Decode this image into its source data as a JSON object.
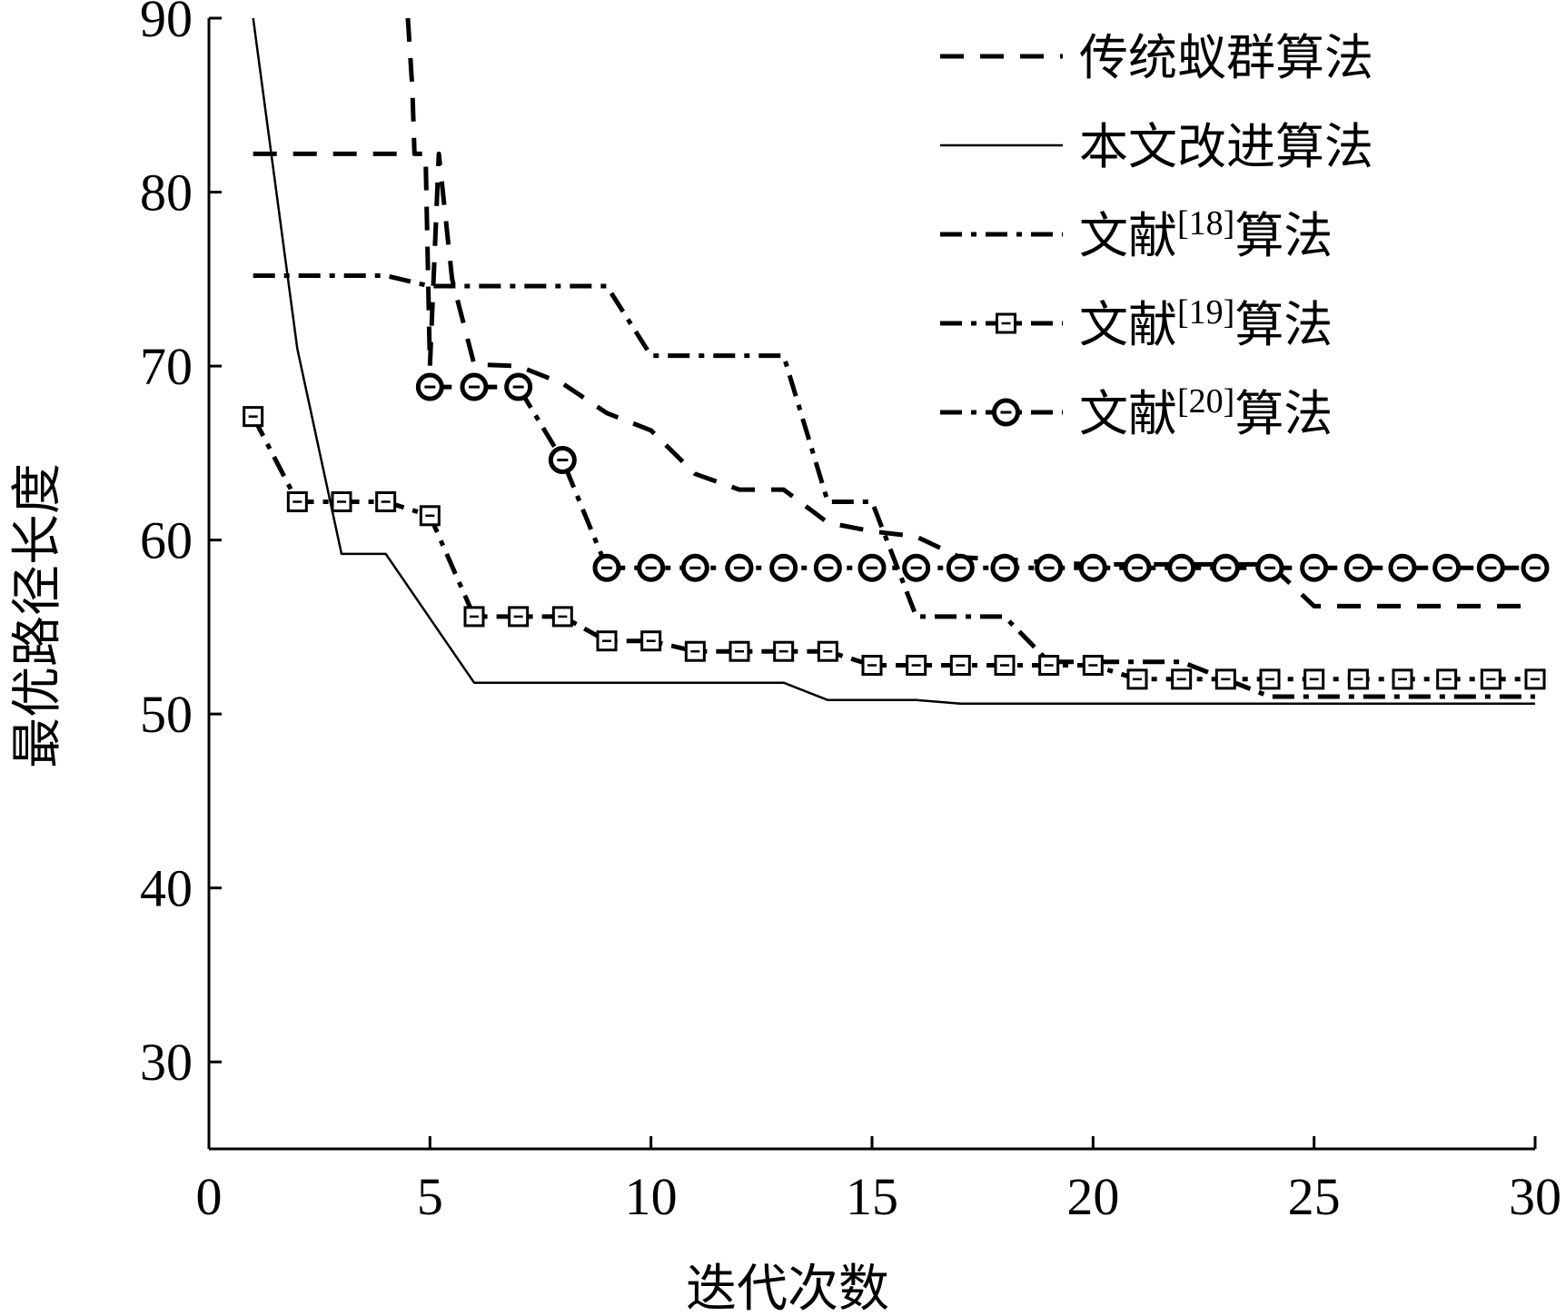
{
  "chart_data": {
    "type": "line",
    "xlabel": "迭代次数",
    "ylabel": "最优路径长度",
    "xlim": [
      0,
      30
    ],
    "ylim": [
      25,
      90
    ],
    "xticks": [
      0,
      5,
      10,
      15,
      20,
      25,
      30
    ],
    "yticks": [
      30,
      40,
      50,
      60,
      70,
      80,
      90
    ],
    "grid": false,
    "legend_position": "top-right",
    "series": [
      {
        "name": "传统蚁群算法",
        "name_prefix": "传统蚁群算法",
        "name_ref": "",
        "name_suffix": "",
        "style": "dashed",
        "marker": "none",
        "points": [
          [
            4.5,
            90
          ],
          [
            4.6,
            86
          ],
          [
            4.65,
            82.2
          ],
          [
            4.9,
            82.2
          ],
          [
            5.0,
            70
          ],
          [
            5.2,
            82.2
          ],
          [
            5.5,
            75
          ],
          [
            6,
            70.1
          ],
          [
            7,
            70
          ],
          [
            8,
            69
          ],
          [
            9,
            67.3
          ],
          [
            10,
            66.3
          ],
          [
            11,
            63.8
          ],
          [
            12,
            62.9
          ],
          [
            13,
            62.9
          ],
          [
            14,
            61
          ],
          [
            15,
            60.5
          ],
          [
            16,
            60.2
          ],
          [
            17,
            59
          ],
          [
            18,
            58.9
          ],
          [
            19,
            58.7
          ],
          [
            20,
            58.6
          ],
          [
            21,
            58.6
          ],
          [
            22,
            58.6
          ],
          [
            23,
            58.6
          ],
          [
            24,
            58.6
          ],
          [
            25,
            56.2
          ],
          [
            30,
            56.2
          ]
        ],
        "extra_segments": [
          [
            [
              1,
              82.2
            ],
            [
              4.6,
              82.2
            ]
          ]
        ]
      },
      {
        "name": "本文改进算法",
        "name_prefix": "本文改进算法",
        "name_ref": "",
        "name_suffix": "",
        "style": "solid",
        "marker": "none",
        "points": [
          [
            1,
            90
          ],
          [
            2,
            71
          ],
          [
            3,
            59.2
          ],
          [
            4,
            59.2
          ],
          [
            5,
            55.5
          ],
          [
            6,
            51.8
          ],
          [
            7,
            51.8
          ],
          [
            8,
            51.8
          ],
          [
            9,
            51.8
          ],
          [
            10,
            51.8
          ],
          [
            11,
            51.8
          ],
          [
            12,
            51.8
          ],
          [
            13,
            51.8
          ],
          [
            14,
            50.8
          ],
          [
            15,
            50.8
          ],
          [
            16,
            50.8
          ],
          [
            17,
            50.6
          ],
          [
            18,
            50.6
          ],
          [
            19,
            50.6
          ],
          [
            20,
            50.6
          ],
          [
            21,
            50.6
          ],
          [
            22,
            50.6
          ],
          [
            23,
            50.6
          ],
          [
            24,
            50.6
          ],
          [
            25,
            50.6
          ],
          [
            30,
            50.6
          ]
        ]
      },
      {
        "name": "文献[18]算法",
        "name_prefix": "文献",
        "name_ref": "[18]",
        "name_suffix": "算法",
        "style": "dashdot",
        "marker": "none",
        "points": [
          [
            1,
            75.2
          ],
          [
            4,
            75.2
          ],
          [
            5,
            74.6
          ],
          [
            9,
            74.6
          ],
          [
            10,
            70.6
          ],
          [
            13,
            70.6
          ],
          [
            14,
            62.2
          ],
          [
            15,
            62.2
          ],
          [
            16,
            55.6
          ],
          [
            18,
            55.6
          ],
          [
            19,
            53
          ],
          [
            22,
            53
          ],
          [
            23,
            52
          ],
          [
            24,
            51
          ],
          [
            30,
            51
          ]
        ]
      },
      {
        "name": "文献[19]算法",
        "name_prefix": "文献",
        "name_ref": "[19]",
        "name_suffix": "算法",
        "style": "dashdot",
        "marker": "square",
        "points": [
          [
            1,
            67.1
          ],
          [
            2,
            62.2
          ],
          [
            3,
            62.2
          ],
          [
            4,
            62.2
          ],
          [
            5,
            61.4
          ],
          [
            6,
            55.6
          ],
          [
            7,
            55.6
          ],
          [
            8,
            55.6
          ],
          [
            9,
            54.2
          ],
          [
            10,
            54.2
          ],
          [
            11,
            53.6
          ],
          [
            12,
            53.6
          ],
          [
            13,
            53.6
          ],
          [
            14,
            53.6
          ],
          [
            15,
            52.8
          ],
          [
            16,
            52.8
          ],
          [
            17,
            52.8
          ],
          [
            18,
            52.8
          ],
          [
            19,
            52.8
          ],
          [
            20,
            52.8
          ],
          [
            21,
            52
          ],
          [
            22,
            52
          ],
          [
            23,
            52
          ],
          [
            24,
            52
          ],
          [
            25,
            52
          ],
          [
            26,
            52
          ],
          [
            27,
            52
          ],
          [
            28,
            52
          ],
          [
            29,
            52
          ],
          [
            30,
            52
          ]
        ]
      },
      {
        "name": "文献[20]算法",
        "name_prefix": "文献",
        "name_ref": "[20]",
        "name_suffix": "算法",
        "style": "dashdot",
        "marker": "circle",
        "points": [
          [
            5,
            68.8
          ],
          [
            6,
            68.8
          ],
          [
            7,
            68.8
          ],
          [
            8,
            64.6
          ],
          [
            9,
            58.4
          ],
          [
            10,
            58.4
          ],
          [
            11,
            58.4
          ],
          [
            12,
            58.4
          ],
          [
            13,
            58.4
          ],
          [
            14,
            58.4
          ],
          [
            15,
            58.4
          ],
          [
            16,
            58.4
          ],
          [
            17,
            58.4
          ],
          [
            18,
            58.4
          ],
          [
            19,
            58.4
          ],
          [
            20,
            58.4
          ],
          [
            21,
            58.4
          ],
          [
            22,
            58.4
          ],
          [
            23,
            58.4
          ],
          [
            24,
            58.4
          ],
          [
            25,
            58.4
          ],
          [
            26,
            58.4
          ],
          [
            27,
            58.4
          ],
          [
            28,
            58.4
          ],
          [
            29,
            58.4
          ],
          [
            30,
            58.4
          ]
        ]
      }
    ]
  }
}
